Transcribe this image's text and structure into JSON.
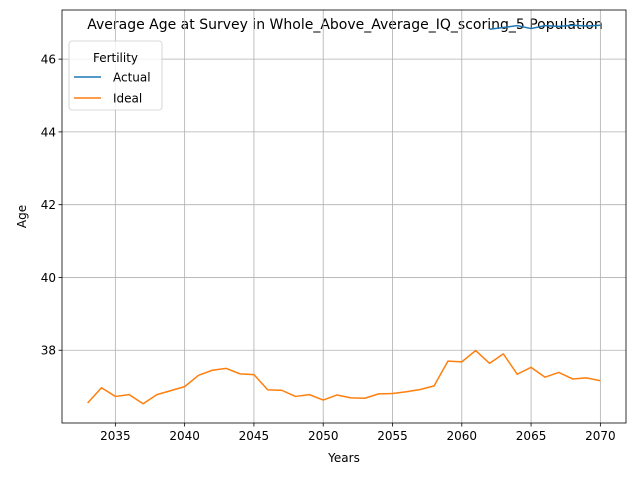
{
  "chart_data": {
    "type": "line",
    "title": "Average Age at Survey in Whole_Above_Average_IQ_scoring_5 Population",
    "xlabel": "Years",
    "ylabel": "Age",
    "xlim": [
      2031.15,
      2071.85
    ],
    "ylim": [
      36.0,
      47.35
    ],
    "xticks": [
      2035,
      2040,
      2045,
      2050,
      2055,
      2060,
      2065,
      2070
    ],
    "yticks": [
      38,
      40,
      42,
      44,
      46
    ],
    "grid": true,
    "legend": {
      "title": "Fertility",
      "placement": "upper-left"
    },
    "series": [
      {
        "name": "Actual",
        "color": "#1f77b4",
        "x": [
          2062,
          2063,
          2064,
          2065,
          2066,
          2067,
          2068,
          2069,
          2070
        ],
        "y": [
          46.82,
          46.87,
          46.92,
          46.84,
          46.92,
          46.9,
          46.93,
          46.91,
          46.93
        ]
      },
      {
        "name": "Ideal",
        "color": "#ff7f0e",
        "x": [
          2033,
          2034,
          2035,
          2036,
          2037,
          2038,
          2039,
          2040,
          2041,
          2042,
          2043,
          2044,
          2045,
          2046,
          2047,
          2048,
          2049,
          2050,
          2051,
          2052,
          2053,
          2054,
          2055,
          2056,
          2057,
          2058,
          2059,
          2060,
          2061,
          2062,
          2063,
          2064,
          2065,
          2066,
          2067,
          2068,
          2069,
          2070
        ],
        "y": [
          36.55,
          36.97,
          36.73,
          36.78,
          36.53,
          36.78,
          36.89,
          37.0,
          37.31,
          37.45,
          37.5,
          37.35,
          37.33,
          36.91,
          36.9,
          36.73,
          36.78,
          36.63,
          36.77,
          36.69,
          36.68,
          36.8,
          36.81,
          36.86,
          36.92,
          37.02,
          37.7,
          37.68,
          37.99,
          37.64,
          37.9,
          37.34,
          37.53,
          37.26,
          37.39,
          37.21,
          37.24,
          37.16
        ]
      }
    ]
  }
}
